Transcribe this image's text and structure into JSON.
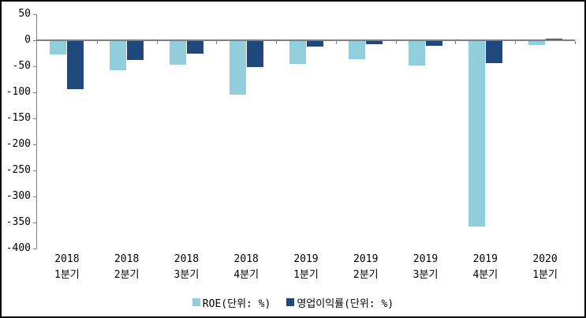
{
  "chart_data": {
    "type": "bar",
    "title": "",
    "xlabel": "",
    "ylabel": "",
    "categories": [
      {
        "year": "2018",
        "quarter": "1분기"
      },
      {
        "year": "2018",
        "quarter": "2분기"
      },
      {
        "year": "2018",
        "quarter": "3분기"
      },
      {
        "year": "2018",
        "quarter": "4분기"
      },
      {
        "year": "2019",
        "quarter": "1분기"
      },
      {
        "year": "2019",
        "quarter": "2분기"
      },
      {
        "year": "2019",
        "quarter": "3분기"
      },
      {
        "year": "2019",
        "quarter": "4분기"
      },
      {
        "year": "2020",
        "quarter": "1분기"
      }
    ],
    "series": [
      {
        "name": "ROE(단위: %)",
        "color": "#92CDDC",
        "values": [
          -28,
          -58,
          -47,
          -105,
          -46,
          -36,
          -48,
          -357,
          -9
        ]
      },
      {
        "name": "영업이익률(단위: %)",
        "color": "#1F497D",
        "values": [
          -94,
          -38,
          -26,
          -52,
          -12,
          -7,
          -11,
          -44,
          3
        ]
      }
    ],
    "ylim": [
      -400,
      50
    ],
    "ytick_step": 50,
    "yticks": [
      50,
      0,
      -50,
      -100,
      -150,
      -200,
      -250,
      -300,
      -350,
      -400
    ],
    "legend_position": "bottom",
    "grid": "off",
    "axis_color": "#808080",
    "text_color": "#000000",
    "background_color": "#ffffff"
  }
}
